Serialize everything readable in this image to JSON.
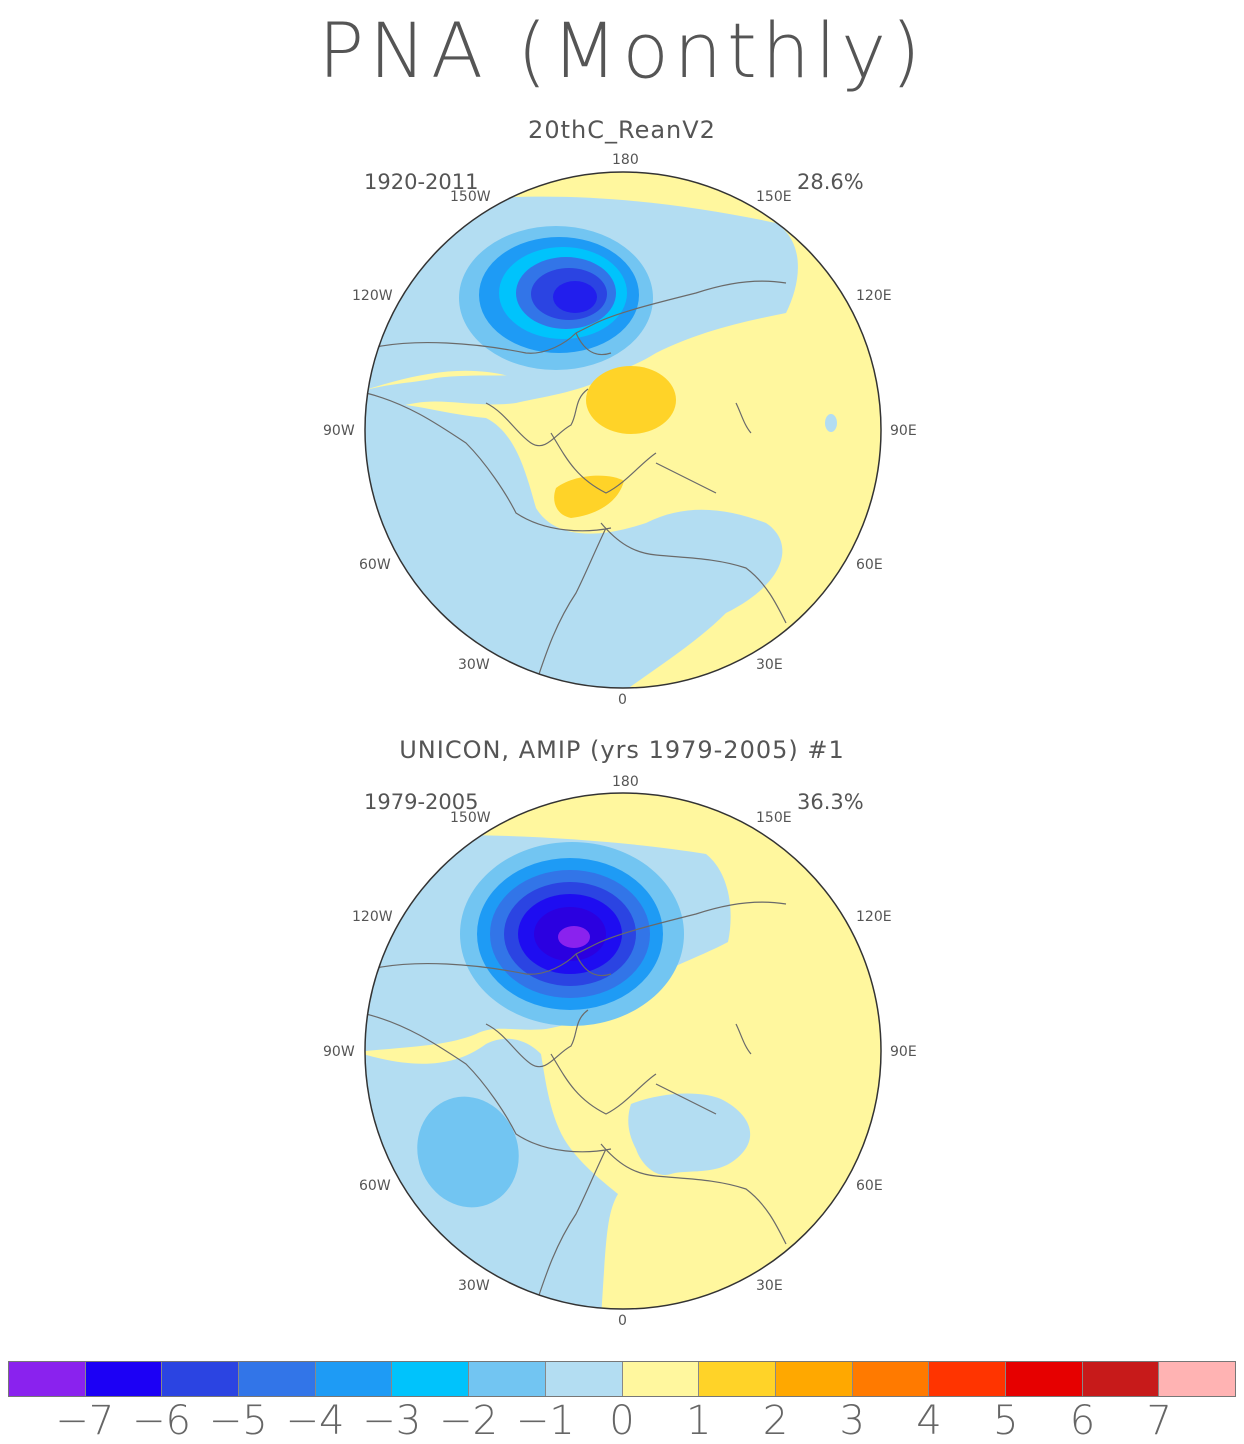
{
  "title": "PNA (Monthly)",
  "panels": [
    {
      "title": "20thC_ReanV2",
      "period": "1920-2011",
      "variance": "28.6%",
      "lon_labels": {
        "180": "180",
        "150W": "150W",
        "150E": "150E",
        "120W": "120W",
        "120E": "120E",
        "90W": "90W",
        "90E": "90E",
        "60W": "60W",
        "60E": "60E",
        "30W": "30W",
        "30E": "30E",
        "0": "0"
      }
    },
    {
      "title": "UNICON, AMIP (yrs 1979-2005)     #1",
      "period": "1979-2005",
      "variance": "36.3%",
      "lon_labels": {
        "180": "180",
        "150W": "150W",
        "150E": "150E",
        "120W": "120W",
        "120E": "120E",
        "90W": "90W",
        "90E": "90E",
        "60W": "60W",
        "60E": "60E",
        "30W": "30W",
        "30E": "30E",
        "0": "0"
      }
    }
  ],
  "colorbar": {
    "labels": [
      "−7",
      "−6",
      "−5",
      "−4",
      "−3",
      "−2",
      "−1",
      "0",
      "1",
      "2",
      "3",
      "4",
      "5",
      "6",
      "7"
    ],
    "colors": [
      "#8a22ee",
      "#1c00f5",
      "#2b44e2",
      "#3275e8",
      "#1e9bf5",
      "#00c3fc",
      "#72c5f2",
      "#b3ddf2",
      "#fff79e",
      "#ffd328",
      "#ffa800",
      "#ff7a00",
      "#ff3400",
      "#e60000",
      "#c71a1a",
      "#ffb3b3"
    ]
  }
}
